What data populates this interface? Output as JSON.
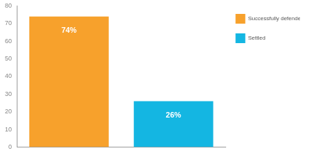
{
  "chart_data": {
    "type": "bar",
    "categories": [
      null,
      null
    ],
    "series": [
      {
        "name": "Successfully defended",
        "color": "#f7a12c",
        "values": [
          74,
          null
        ],
        "value_labels": [
          "74%",
          null
        ]
      },
      {
        "name": "Settled",
        "color": "#14b6e2",
        "values": [
          null,
          26
        ],
        "value_labels": [
          null,
          "26%"
        ]
      }
    ],
    "ylim": [
      0,
      80
    ],
    "yticks": [
      0,
      10,
      20,
      30,
      40,
      50,
      60,
      70,
      80
    ],
    "grid": false,
    "legend": "top-right",
    "data_labels": true,
    "tick_labels": "y"
  }
}
